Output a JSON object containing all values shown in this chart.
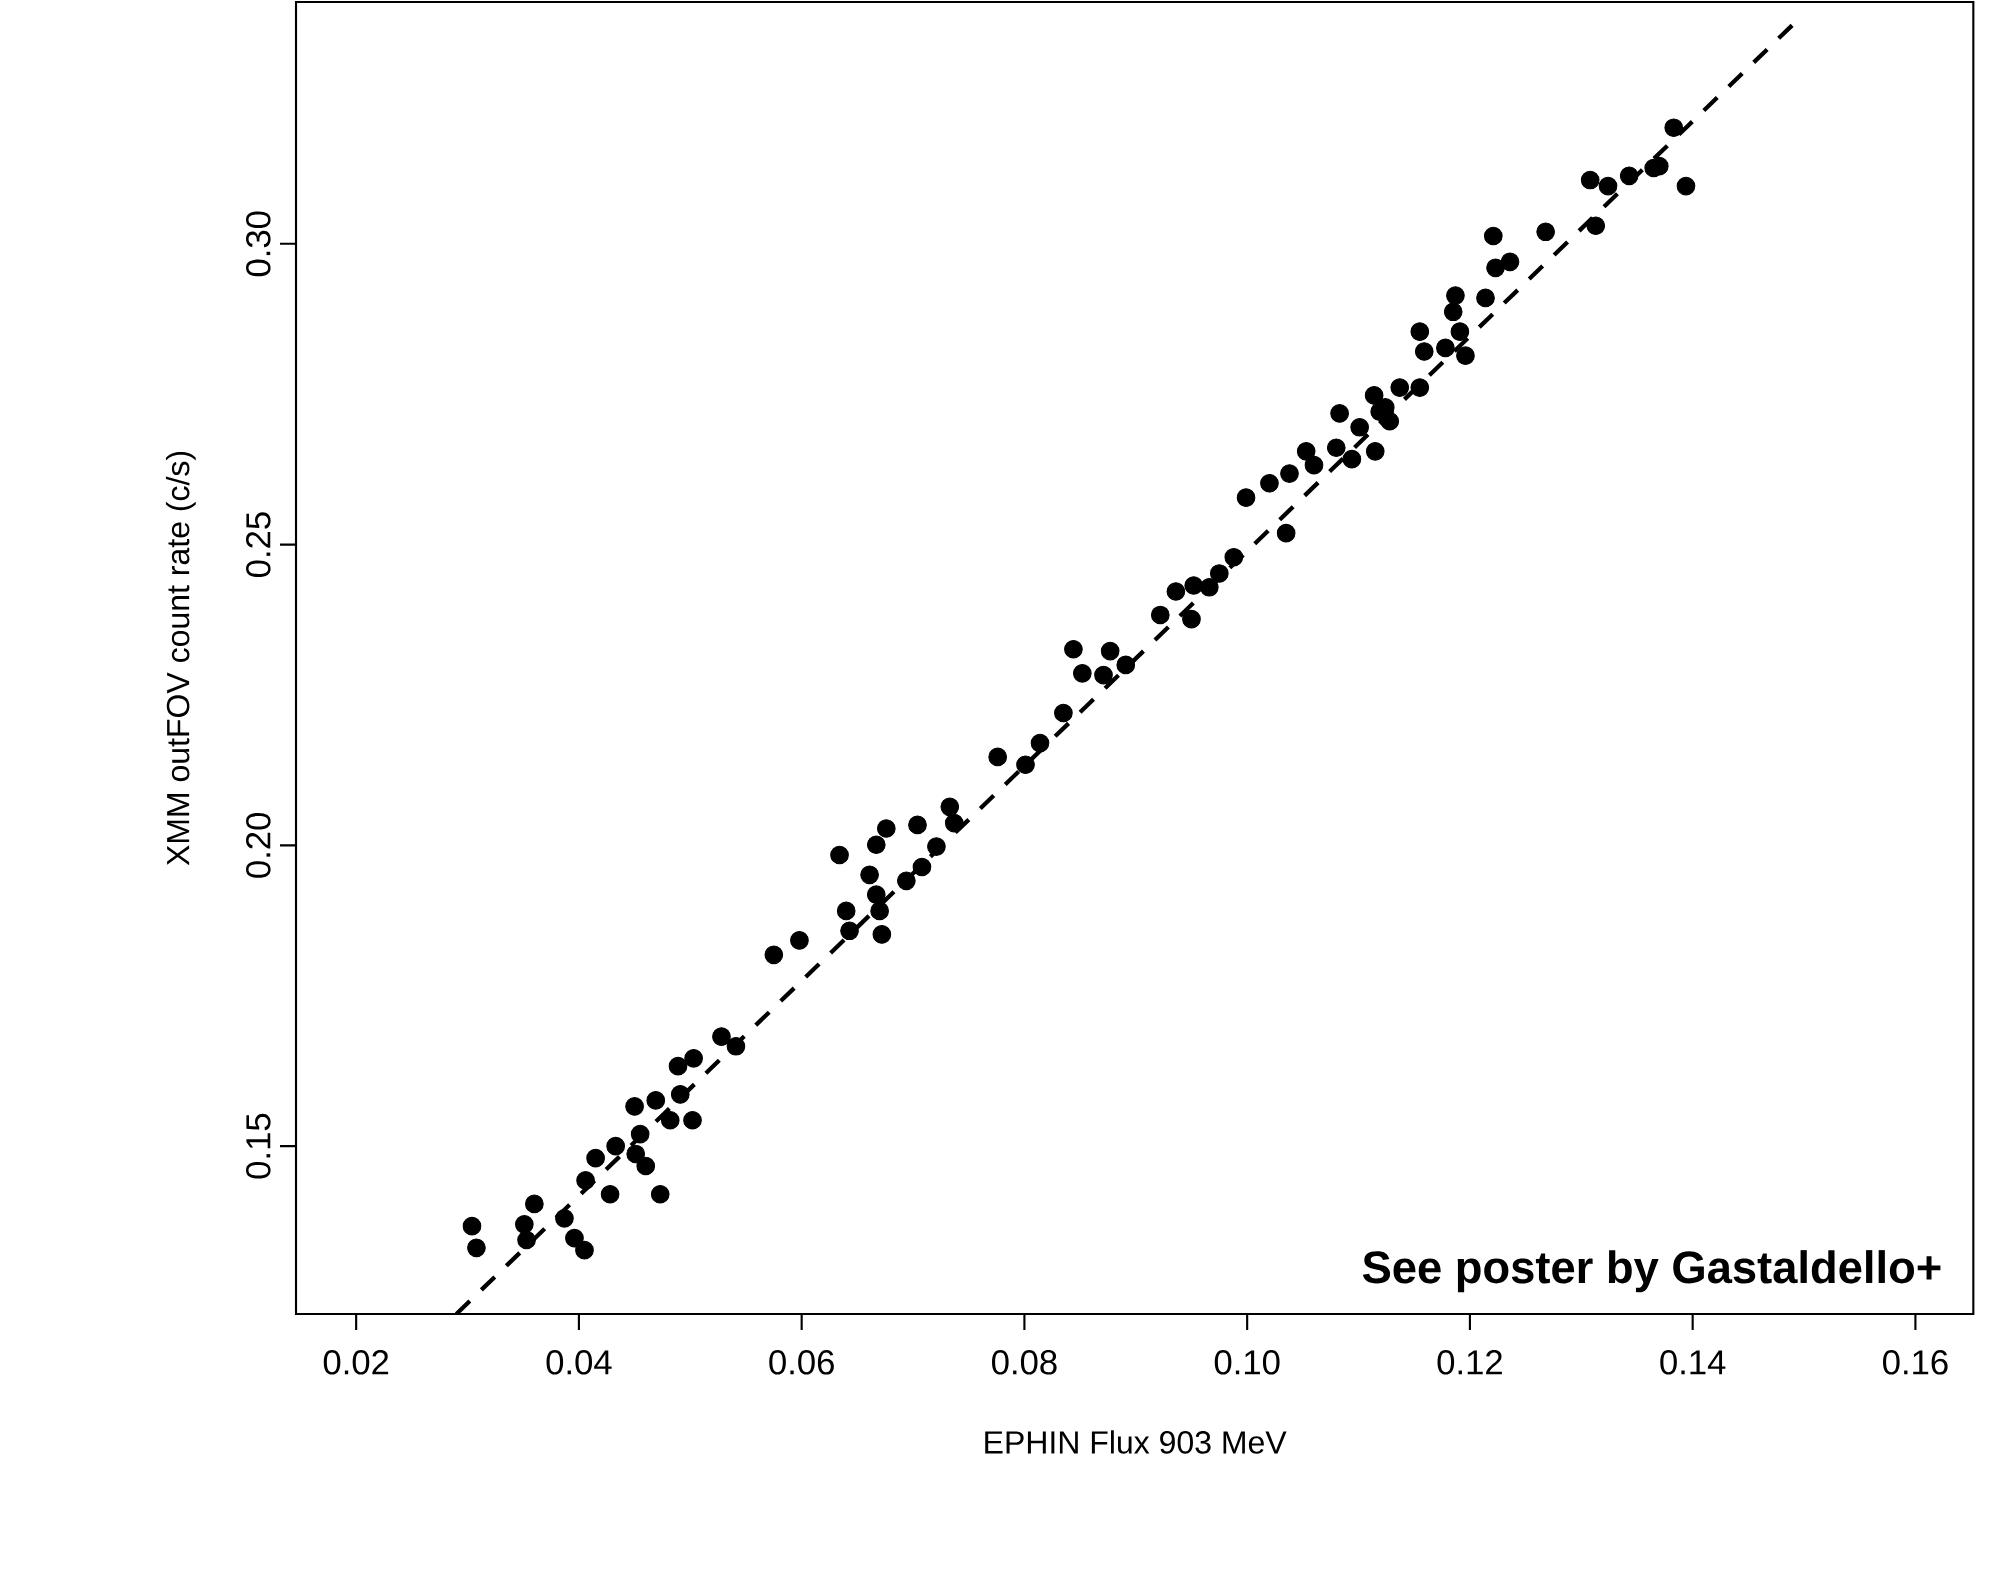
{
  "chart_data": {
    "type": "scatter",
    "xlabel": "EPHIN Flux 903 MeV",
    "ylabel": "XMM outFOV count rate (c/s)",
    "annotations": [
      "**See poster by Gastaldello+**"
    ],
    "xlim": [
      0.0146,
      0.1652
    ],
    "ylim": [
      0.1221,
      0.3402
    ],
    "xticks": [
      {
        "value": 0.02,
        "label": "0.02"
      },
      {
        "value": 0.04,
        "label": "0.04"
      },
      {
        "value": 0.06,
        "label": "0.06"
      },
      {
        "value": 0.08,
        "label": "0.08"
      },
      {
        "value": 0.1,
        "label": "0.10"
      },
      {
        "value": 0.12,
        "label": "0.12"
      },
      {
        "value": 0.14,
        "label": "0.14"
      },
      {
        "value": 0.16,
        "label": "0.16"
      }
    ],
    "yticks": [
      {
        "value": 0.15,
        "label": "0.15"
      },
      {
        "value": 0.2,
        "label": "0.20"
      },
      {
        "value": 0.25,
        "label": "0.25"
      },
      {
        "value": 0.3,
        "label": "0.30"
      }
    ],
    "grid": false,
    "series": [
      {
        "color": "#000000",
        "marker": "circle",
        "x": [
          0.036,
          0.0351,
          0.0353,
          0.0387,
          0.0396,
          0.0405,
          0.0406,
          0.0415,
          0.0428,
          0.0433,
          0.045,
          0.0455,
          0.0451,
          0.046,
          0.0473,
          0.0469,
          0.0482,
          0.0491,
          0.0502,
          0.0489,
          0.0503,
          0.0528,
          0.0541,
          0.0575,
          0.0598,
          0.0634,
          0.064,
          0.0643,
          0.0661,
          0.0667,
          0.067,
          0.0672,
          0.0667,
          0.0676,
          0.0694,
          0.0708,
          0.0704,
          0.0721,
          0.0733,
          0.0737,
          0.0304,
          0.0308,
          0.0776,
          0.0801,
          0.0814,
          0.0835,
          0.0844,
          0.0852,
          0.0871,
          0.0877,
          0.0891,
          0.0922,
          0.0936,
          0.095,
          0.0952,
          0.0966,
          0.0975,
          0.0988,
          0.0999,
          0.102,
          0.1035,
          0.1038,
          0.1053,
          0.106,
          0.108,
          0.1083,
          0.1094,
          0.1115,
          0.1101,
          0.1119,
          0.1114,
          0.1128,
          0.1137,
          0.1155,
          0.1124,
          0.1155,
          0.1159,
          0.1178,
          0.1196,
          0.1191,
          0.1185,
          0.1187,
          0.1214,
          0.1223,
          0.1236,
          0.1221,
          0.1268,
          0.1313,
          0.1308,
          0.1324,
          0.1343,
          0.1365,
          0.137,
          0.1383,
          0.1394
        ],
        "values": [
          0.1404,
          0.137,
          0.1344,
          0.138,
          0.1347,
          0.1327,
          0.1443,
          0.148,
          0.142,
          0.15,
          0.1566,
          0.152,
          0.1487,
          0.1467,
          0.142,
          0.1576,
          0.1543,
          0.1586,
          0.1543,
          0.1633,
          0.1646,
          0.1682,
          0.1666,
          0.1818,
          0.1842,
          0.1984,
          0.1891,
          0.1858,
          0.1951,
          0.1918,
          0.1891,
          0.1852,
          0.2001,
          0.2028,
          0.1941,
          0.1964,
          0.2034,
          0.1998,
          0.2064,
          0.2037,
          0.1367,
          0.1331,
          0.2147,
          0.2134,
          0.217,
          0.222,
          0.2326,
          0.2286,
          0.2283,
          0.2323,
          0.23,
          0.2383,
          0.2422,
          0.2376,
          0.2432,
          0.2429,
          0.2452,
          0.2479,
          0.2578,
          0.2602,
          0.2519,
          0.2618,
          0.2655,
          0.2632,
          0.2661,
          0.2718,
          0.2642,
          0.2655,
          0.2695,
          0.2721,
          0.2748,
          0.2705,
          0.2761,
          0.2761,
          0.2728,
          0.2854,
          0.2821,
          0.2827,
          0.2814,
          0.2854,
          0.2887,
          0.2914,
          0.291,
          0.296,
          0.297,
          0.3013,
          0.302,
          0.303,
          0.3106,
          0.3096,
          0.3113,
          0.3126,
          0.3129,
          0.3193,
          0.3096
        ]
      },
      {
        "type": "line",
        "color": "#000000",
        "marker": "none",
        "line_style": "dashed",
        "x": [
          0.029,
          0.1492
        ],
        "values": [
          0.1221,
          0.3368
        ]
      }
    ]
  }
}
